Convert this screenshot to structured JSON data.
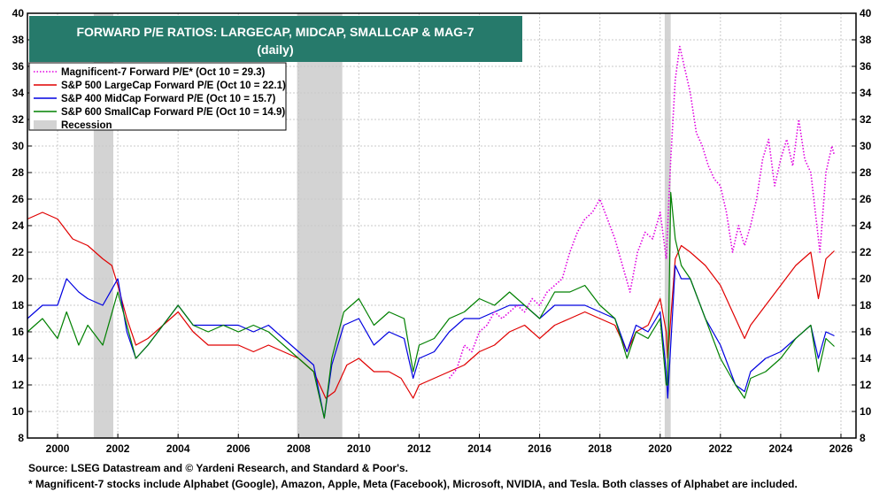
{
  "chart_data": {
    "type": "line",
    "title": "FORWARD P/E RATIOS: LARGECAP, MIDCAP, SMALLCAP & MAG-7",
    "subtitle": "(daily)",
    "xlim": [
      1999.0,
      2026.5
    ],
    "ylim": [
      8,
      40
    ],
    "x_ticks": [
      2000,
      2002,
      2004,
      2006,
      2008,
      2010,
      2012,
      2014,
      2016,
      2018,
      2020,
      2022,
      2024,
      2026
    ],
    "y_ticks": [
      8,
      10,
      12,
      14,
      16,
      18,
      20,
      22,
      24,
      26,
      28,
      30,
      32,
      34,
      36,
      38,
      40
    ],
    "grid": true,
    "legend_position": "top-left",
    "recessions": [
      [
        2001.2,
        2001.85
      ],
      [
        2007.95,
        2009.45
      ],
      [
        2020.15,
        2020.35
      ]
    ],
    "series": [
      {
        "name": "Magnificent-7 Forward P/E* (Oct 10 = 29.3)",
        "color": "#e000e0",
        "style": "dotted",
        "x": [
          2013.0,
          2013.25,
          2013.5,
          2013.75,
          2014.0,
          2014.25,
          2014.5,
          2014.75,
          2015.0,
          2015.25,
          2015.5,
          2015.75,
          2016.0,
          2016.25,
          2016.5,
          2016.75,
          2017.0,
          2017.25,
          2017.5,
          2017.75,
          2018.0,
          2018.25,
          2018.5,
          2018.75,
          2019.0,
          2019.25,
          2019.5,
          2019.75,
          2020.0,
          2020.2,
          2020.35,
          2020.5,
          2020.65,
          2020.8,
          2021.0,
          2021.2,
          2021.4,
          2021.6,
          2021.8,
          2022.0,
          2022.2,
          2022.4,
          2022.6,
          2022.8,
          2023.0,
          2023.2,
          2023.4,
          2023.6,
          2023.8,
          2024.0,
          2024.2,
          2024.4,
          2024.6,
          2024.8,
          2025.0,
          2025.2,
          2025.3,
          2025.5,
          2025.7,
          2025.78
        ],
        "y": [
          12.5,
          13.2,
          15.0,
          14.5,
          16.0,
          16.5,
          17.5,
          17.0,
          17.5,
          18.0,
          17.5,
          18.5,
          18.0,
          19.0,
          19.5,
          20.0,
          22.0,
          23.5,
          24.5,
          25.0,
          26.0,
          24.5,
          23.0,
          21.0,
          19.0,
          22.0,
          23.5,
          23.0,
          25.0,
          21.5,
          29.0,
          35.0,
          37.5,
          36.0,
          34.0,
          31.0,
          30.0,
          28.5,
          27.5,
          27.0,
          25.0,
          22.0,
          24.0,
          22.5,
          24.0,
          26.0,
          29.0,
          30.5,
          27.0,
          29.0,
          30.5,
          28.5,
          32.0,
          29.0,
          28.0,
          24.0,
          22.0,
          28.0,
          30.0,
          29.3
        ]
      },
      {
        "name": "S&P 500 LargeCap Forward P/E (Oct 10 = 22.1)",
        "color": "#e00000",
        "style": "solid",
        "x": [
          1999.0,
          1999.5,
          2000.0,
          2000.5,
          2001.0,
          2001.5,
          2001.8,
          2002.0,
          2002.3,
          2002.6,
          2003.0,
          2003.5,
          2004.0,
          2004.5,
          2005.0,
          2005.5,
          2006.0,
          2006.5,
          2007.0,
          2007.5,
          2008.0,
          2008.5,
          2008.9,
          2009.2,
          2009.6,
          2010.0,
          2010.5,
          2011.0,
          2011.4,
          2011.8,
          2012.0,
          2012.5,
          2013.0,
          2013.5,
          2014.0,
          2014.5,
          2015.0,
          2015.5,
          2016.0,
          2016.5,
          2017.0,
          2017.5,
          2018.0,
          2018.5,
          2018.9,
          2019.2,
          2019.6,
          2020.0,
          2020.2,
          2020.25,
          2020.5,
          2020.7,
          2021.0,
          2021.5,
          2022.0,
          2022.5,
          2022.8,
          2023.0,
          2023.5,
          2024.0,
          2024.5,
          2025.0,
          2025.25,
          2025.5,
          2025.78
        ],
        "y": [
          24.5,
          25.0,
          24.5,
          23.0,
          22.5,
          21.5,
          21.0,
          19.5,
          17.0,
          15.0,
          15.5,
          16.5,
          17.5,
          16.0,
          15.0,
          15.0,
          15.0,
          14.5,
          15.0,
          14.5,
          14.0,
          13.0,
          11.0,
          11.5,
          13.5,
          14.0,
          13.0,
          13.0,
          12.5,
          11.0,
          12.0,
          12.5,
          13.0,
          13.5,
          14.5,
          15.0,
          16.0,
          16.5,
          15.5,
          16.5,
          17.0,
          17.5,
          17.0,
          16.5,
          14.5,
          16.0,
          16.5,
          18.5,
          16.0,
          14.0,
          21.5,
          22.5,
          22.0,
          21.0,
          19.5,
          17.0,
          15.5,
          16.5,
          18.0,
          19.5,
          21.0,
          22.0,
          18.5,
          21.5,
          22.1
        ]
      },
      {
        "name": "S&P 400 MidCap Forward P/E (Oct 10 = 15.7)",
        "color": "#0000e0",
        "style": "solid",
        "x": [
          1999.0,
          1999.5,
          2000.0,
          2000.3,
          2000.7,
          2001.0,
          2001.5,
          2002.0,
          2002.3,
          2002.6,
          2003.0,
          2003.5,
          2004.0,
          2004.5,
          2005.0,
          2005.5,
          2006.0,
          2006.5,
          2007.0,
          2007.5,
          2008.0,
          2008.5,
          2008.85,
          2009.1,
          2009.5,
          2010.0,
          2010.5,
          2011.0,
          2011.5,
          2011.8,
          2012.0,
          2012.5,
          2013.0,
          2013.5,
          2014.0,
          2014.5,
          2015.0,
          2015.5,
          2016.0,
          2016.5,
          2017.0,
          2017.5,
          2018.0,
          2018.5,
          2018.9,
          2019.2,
          2019.6,
          2020.0,
          2020.2,
          2020.25,
          2020.5,
          2020.7,
          2021.0,
          2021.5,
          2022.0,
          2022.5,
          2022.8,
          2023.0,
          2023.5,
          2024.0,
          2024.5,
          2025.0,
          2025.25,
          2025.5,
          2025.78
        ],
        "y": [
          17.0,
          18.0,
          18.0,
          20.0,
          19.0,
          18.5,
          18.0,
          20.0,
          16.0,
          14.0,
          15.0,
          16.5,
          18.0,
          16.5,
          16.5,
          16.5,
          16.5,
          16.0,
          16.5,
          15.5,
          14.5,
          13.5,
          9.5,
          13.5,
          16.5,
          17.0,
          15.0,
          16.0,
          15.5,
          12.5,
          14.0,
          14.5,
          16.0,
          17.0,
          17.0,
          17.5,
          18.0,
          18.0,
          17.0,
          18.0,
          18.0,
          18.0,
          17.5,
          17.0,
          14.5,
          16.5,
          16.0,
          17.5,
          13.0,
          11.0,
          21.0,
          20.0,
          20.0,
          17.0,
          15.0,
          12.0,
          11.5,
          13.0,
          14.0,
          14.5,
          15.5,
          16.5,
          14.0,
          16.0,
          15.7
        ]
      },
      {
        "name": "S&P 600 SmallCap Forward P/E (Oct 10 = 14.9)",
        "color": "#008000",
        "style": "solid",
        "x": [
          1999.0,
          1999.5,
          2000.0,
          2000.3,
          2000.7,
          2001.0,
          2001.5,
          2002.0,
          2002.3,
          2002.6,
          2003.0,
          2003.5,
          2004.0,
          2004.5,
          2005.0,
          2005.5,
          2006.0,
          2006.5,
          2007.0,
          2007.5,
          2008.0,
          2008.5,
          2008.85,
          2009.1,
          2009.5,
          2010.0,
          2010.5,
          2011.0,
          2011.5,
          2011.8,
          2012.0,
          2012.5,
          2013.0,
          2013.5,
          2014.0,
          2014.5,
          2015.0,
          2015.5,
          2016.0,
          2016.5,
          2017.0,
          2017.5,
          2018.0,
          2018.5,
          2018.9,
          2019.2,
          2019.6,
          2020.0,
          2020.2,
          2020.25,
          2020.35,
          2020.5,
          2020.7,
          2021.0,
          2021.5,
          2022.0,
          2022.5,
          2022.8,
          2023.0,
          2023.5,
          2024.0,
          2024.5,
          2025.0,
          2025.25,
          2025.5,
          2025.78
        ],
        "y": [
          16.0,
          17.0,
          15.5,
          17.5,
          15.0,
          16.5,
          15.0,
          19.0,
          16.5,
          14.0,
          15.0,
          16.5,
          18.0,
          16.5,
          16.0,
          16.5,
          16.0,
          16.5,
          16.0,
          15.0,
          14.0,
          13.0,
          9.5,
          14.0,
          17.5,
          18.5,
          16.5,
          17.5,
          17.0,
          13.0,
          15.0,
          15.5,
          17.0,
          17.5,
          18.5,
          18.0,
          19.0,
          18.0,
          17.0,
          19.0,
          19.0,
          19.5,
          18.0,
          17.0,
          14.0,
          16.0,
          15.5,
          17.0,
          12.0,
          12.0,
          26.5,
          23.0,
          21.0,
          20.0,
          17.0,
          14.0,
          12.0,
          11.0,
          12.5,
          13.0,
          14.0,
          15.5,
          16.5,
          13.0,
          15.5,
          14.9
        ]
      }
    ]
  },
  "legend_recession_label": "Recession",
  "footer": {
    "source": "Source: LSEG Datastream and © Yardeni Research, and Standard & Poor's.",
    "footnote": "* Magnificent-7 stocks include Alphabet (Google), Amazon, Apple, Meta (Facebook), Microsoft, NVIDIA, and Tesla. Both classes of Alphabet are included."
  },
  "colors": {
    "title_box": "#267a6b",
    "recession": "#d3d3d3",
    "grid": "#c8c8c8"
  }
}
